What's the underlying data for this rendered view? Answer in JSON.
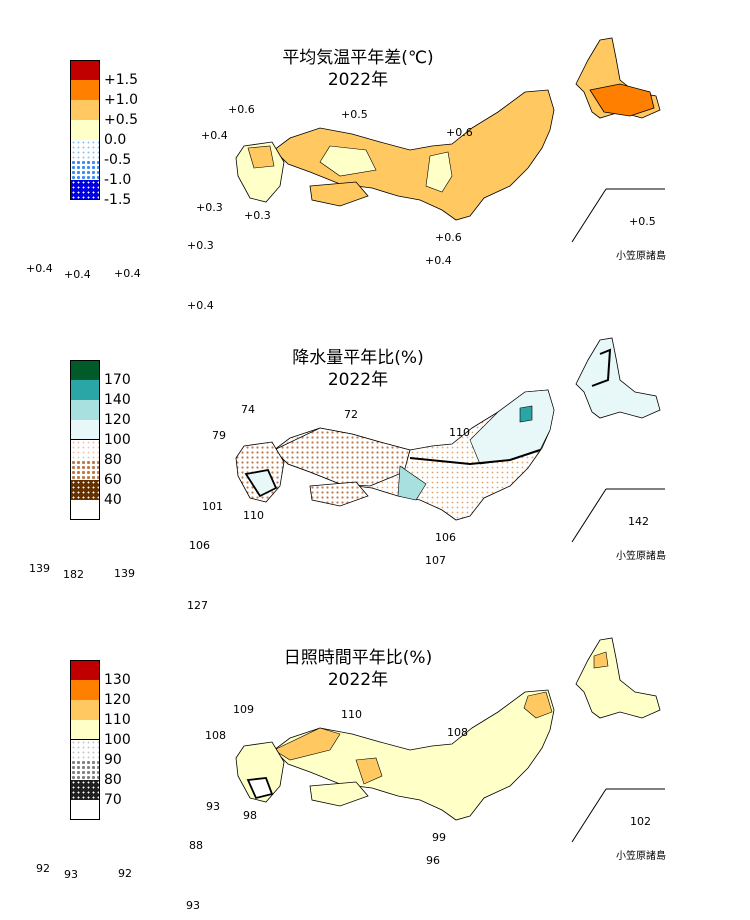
{
  "panels": [
    {
      "title_line1": "平均気温平年差(℃)",
      "title_line2": "2022年",
      "legend": [
        {
          "label": "+1.5",
          "color": "#c00000",
          "pattern": "solid"
        },
        {
          "label": "+1.0",
          "color": "#ff8000",
          "pattern": "solid"
        },
        {
          "label": "+0.5",
          "color": "#ffc860",
          "pattern": "solid"
        },
        {
          "label": "0.0",
          "color": "#ffffc8",
          "pattern": "solid"
        },
        {
          "label": "-0.5",
          "color": "#8ec6f0",
          "pattern": "dots-light"
        },
        {
          "label": "-1.0",
          "color": "#3a8cf0",
          "pattern": "dots-mid"
        },
        {
          "label": "-1.5",
          "color": "#0000e0",
          "pattern": "dots-dark"
        },
        {
          "label": "",
          "color": "#ffffff",
          "pattern": "none"
        }
      ],
      "region_labels": [
        "+0.6",
        "+0.5",
        "+0.4",
        "+0.6",
        "+0.3",
        "+0.3",
        "+0.6",
        "+0.4",
        "+0.3",
        "+0.4",
        "+0.4",
        "+0.4",
        "+0.4",
        "+0.5"
      ],
      "ogasawara": "小笠原諸島"
    },
    {
      "title_line1": "降水量平年比(%)",
      "title_line2": "2022年",
      "legend": [
        {
          "label": "170",
          "color": "#005a2a",
          "pattern": "solid"
        },
        {
          "label": "140",
          "color": "#2aa6a6",
          "pattern": "solid"
        },
        {
          "label": "120",
          "color": "#a8e0e0",
          "pattern": "solid"
        },
        {
          "label": "100",
          "color": "#e8f8f8",
          "pattern": "solid"
        },
        {
          "label": "80",
          "color": "#f0c8b0",
          "pattern": "dots-light"
        },
        {
          "label": "60",
          "color": "#c07848",
          "pattern": "dots-mid"
        },
        {
          "label": "40",
          "color": "#643200",
          "pattern": "dots-dark"
        },
        {
          "label": "",
          "color": "#ffffff",
          "pattern": "none"
        }
      ],
      "region_labels": [
        "74",
        "72",
        "79",
        "110",
        "101",
        "110",
        "106",
        "107",
        "106",
        "139",
        "182",
        "139",
        "127",
        "142"
      ],
      "ogasawara": "小笠原諸島"
    },
    {
      "title_line1": "日照時間平年比(%)",
      "title_line2": "2022年",
      "legend": [
        {
          "label": "130",
          "color": "#c00000",
          "pattern": "solid"
        },
        {
          "label": "120",
          "color": "#ff8000",
          "pattern": "solid"
        },
        {
          "label": "110",
          "color": "#ffc860",
          "pattern": "solid"
        },
        {
          "label": "100",
          "color": "#ffffc8",
          "pattern": "solid"
        },
        {
          "label": "90",
          "color": "#c8c8c8",
          "pattern": "dots-light"
        },
        {
          "label": "80",
          "color": "#808080",
          "pattern": "dots-mid"
        },
        {
          "label": "70",
          "color": "#202020",
          "pattern": "dots-dark"
        },
        {
          "label": "",
          "color": "#ffffff",
          "pattern": "none"
        }
      ],
      "region_labels": [
        "109",
        "110",
        "108",
        "108",
        "93",
        "98",
        "99",
        "96",
        "88",
        "92",
        "93",
        "92",
        "93",
        "102"
      ],
      "ogasawara": "小笠原諸島"
    }
  ]
}
